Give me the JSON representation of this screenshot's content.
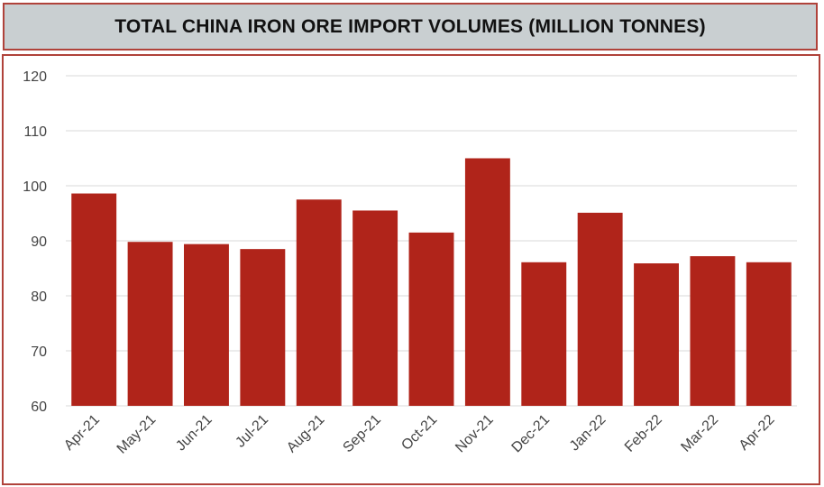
{
  "title": "TOTAL CHINA IRON ORE IMPORT VOLUMES (MILLION TONNES)",
  "chart_data": {
    "type": "bar",
    "title": "TOTAL CHINA IRON ORE IMPORT VOLUMES (MILLION TONNES)",
    "xlabel": "",
    "ylabel": "",
    "categories": [
      "Apr-21",
      "May-21",
      "Jun-21",
      "Jul-21",
      "Aug-21",
      "Sep-21",
      "Oct-21",
      "Nov-21",
      "Dec-21",
      "Jan-22",
      "Feb-22",
      "Mar-22",
      "Apr-22"
    ],
    "values": [
      98.6,
      89.8,
      89.4,
      88.5,
      97.5,
      95.5,
      91.5,
      105.0,
      86.1,
      95.1,
      85.9,
      87.2,
      86.1
    ],
    "ylim": [
      60,
      120
    ],
    "yticks": [
      60,
      70,
      80,
      90,
      100,
      110,
      120
    ],
    "grid": true,
    "legend": "none",
    "bar_color": "#b0241a",
    "grid_color": "#d9d9d9"
  }
}
